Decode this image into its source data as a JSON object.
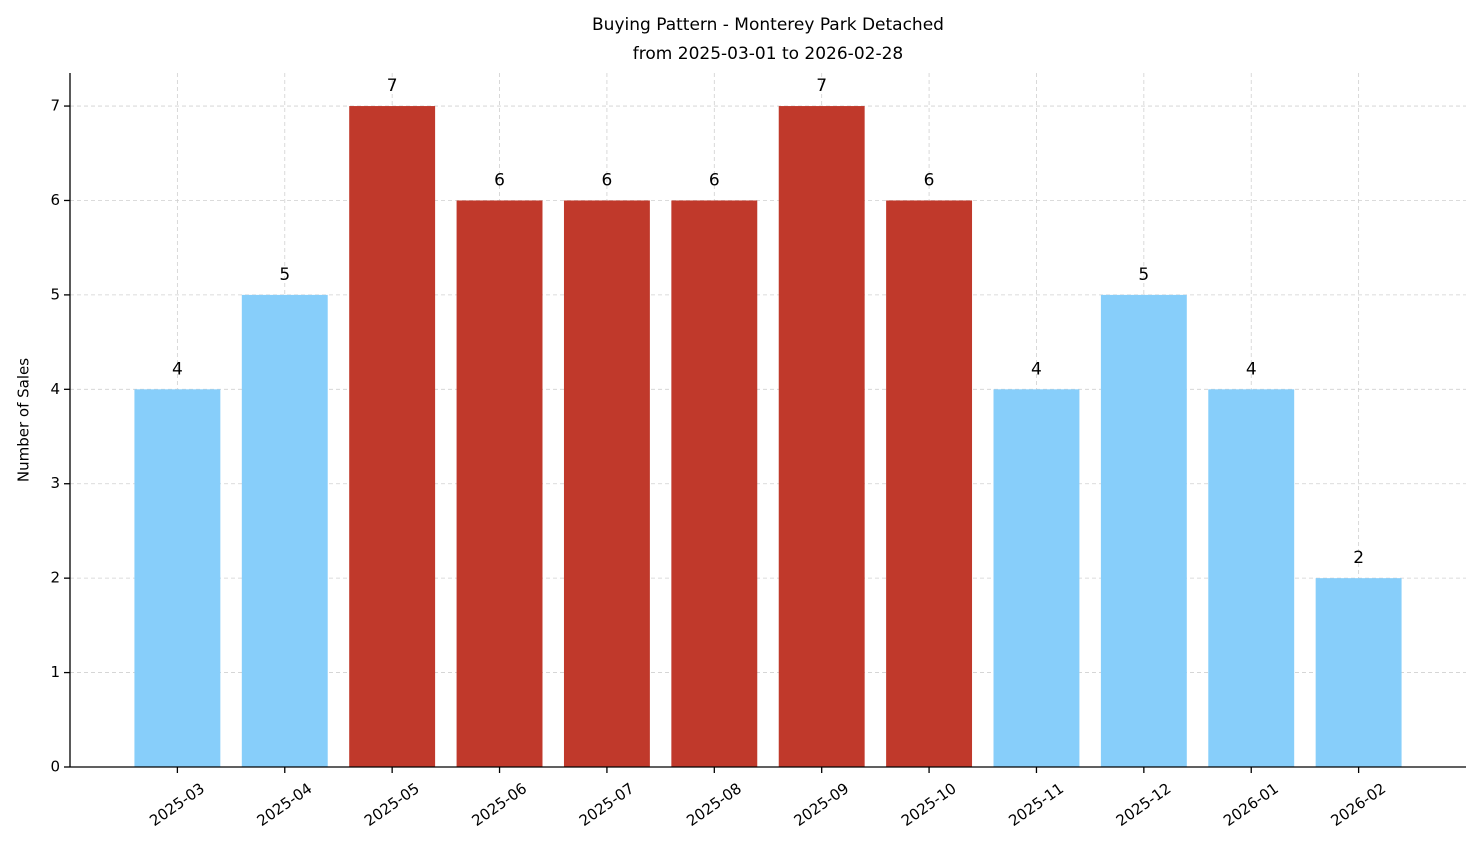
{
  "chart_data": {
    "type": "bar",
    "title": "Buying Pattern - Monterey Park Detached",
    "subtitle": "from 2025-03-01 to 2026-02-28",
    "y_label": "Number of Sales",
    "categories": [
      "2025-03",
      "2025-04",
      "2025-05",
      "2025-06",
      "2025-07",
      "2025-08",
      "2025-09",
      "2025-10",
      "2025-11",
      "2025-12",
      "2026-01",
      "2026-02"
    ],
    "values": [
      4,
      5,
      7,
      6,
      6,
      6,
      7,
      6,
      4,
      5,
      4,
      2
    ],
    "colors": [
      "#87cefa",
      "#87cefa",
      "#c0392b",
      "#c0392b",
      "#c0392b",
      "#c0392b",
      "#c0392b",
      "#c0392b",
      "#87cefa",
      "#87cefa",
      "#87cefa",
      "#87cefa"
    ],
    "ylim": [
      0,
      7.35
    ],
    "yticks": [
      0,
      1,
      2,
      3,
      4,
      5,
      6,
      7
    ],
    "grid": true
  }
}
